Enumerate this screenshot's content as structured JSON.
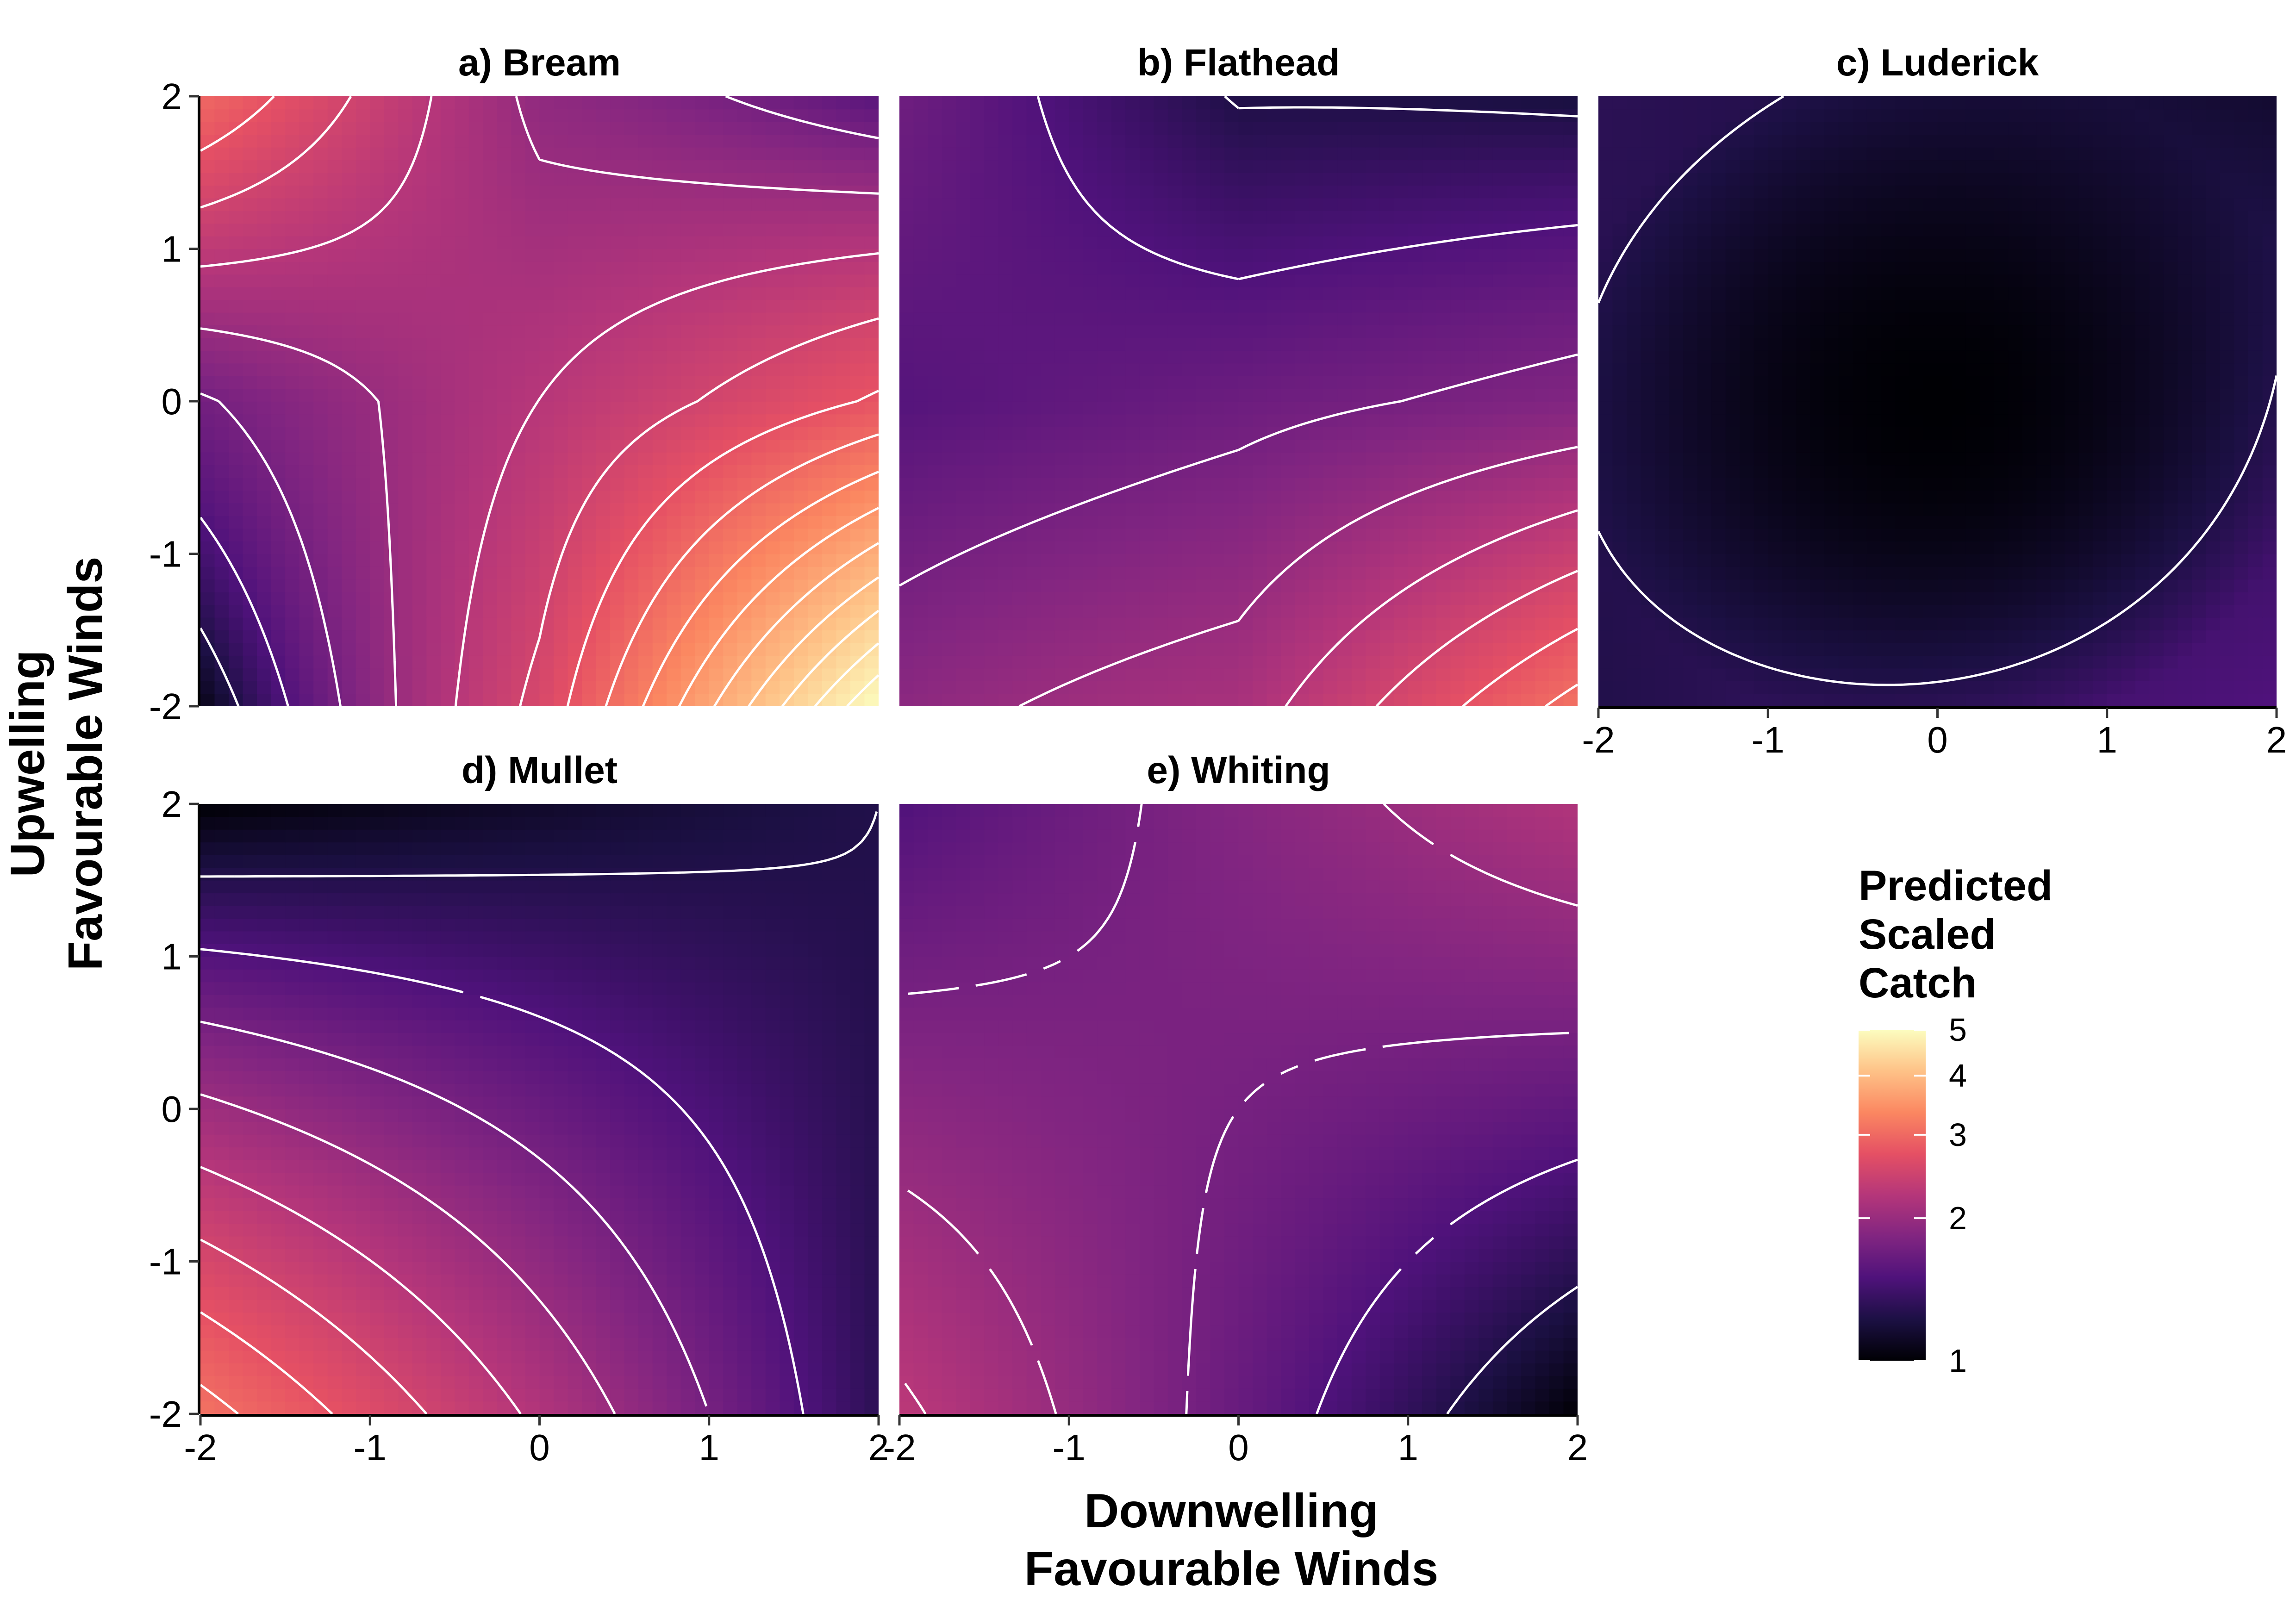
{
  "chart_data": {
    "type": "heatmap",
    "xlabel_lines": [
      "Downwelling",
      "Favourable Winds"
    ],
    "ylabel_lines": [
      "Upwelling",
      "Favourable Winds"
    ],
    "xlim": [
      -2,
      2
    ],
    "ylim": [
      -2,
      2
    ],
    "x_ticks": [
      "-2",
      "-1",
      "0",
      "1",
      "2"
    ],
    "y_ticks": [
      "-2",
      "-1",
      "0",
      "1",
      "2"
    ],
    "contour_color": "#ffffff",
    "grid": false,
    "colorscale": {
      "name": "magma",
      "log_scale": true,
      "range": [
        1,
        5
      ],
      "colors": [
        "#000004",
        "#1c1044",
        "#4f127b",
        "#812581",
        "#b5367a",
        "#e55064",
        "#fb8761",
        "#fec287",
        "#fcfdbf"
      ]
    },
    "legend": {
      "title_lines": [
        "Predicted",
        "Scaled",
        "Catch"
      ],
      "ticks": [
        "1",
        "2",
        "3",
        "4",
        "5"
      ],
      "placement": "right"
    },
    "panels": [
      {
        "title": "a) Bream",
        "surface": "saddle",
        "description_values": {
          "min": 1.0,
          "max": 5.0
        },
        "corner_values": {
          "x-2_y-2": 1.05,
          "x2_y-2": 5.0,
          "x-2_y2": 3.0,
          "x2_y2": 1.55
        }
      },
      {
        "title": "b) Flathead",
        "surface": "saddle",
        "corner_values": {
          "x-2_y-2": 1.9,
          "x2_y-2": 3.1,
          "x-2_y2": 1.7,
          "x2_y2": 1.2
        }
      },
      {
        "title": "c) Luderick",
        "surface": "bowl",
        "corner_values": {
          "x-2_y-2": 1.25,
          "x2_y-2": 1.5,
          "x-2_y2": 1.3,
          "x2_y2": 1.15
        },
        "min_value": 1.0
      },
      {
        "title": "d) Mullet",
        "surface": "gradient",
        "corner_values": {
          "x-2_y-2": 3.1,
          "x2_y-2": 1.3,
          "x-2_y2": 1.0,
          "x2_y2": 1.25
        },
        "min_value": 1.0
      },
      {
        "title": "e) Whiting",
        "surface": "gradient",
        "corner_values": {
          "x-2_y-2": 2.3,
          "x2_y-2": 1.0,
          "x-2_y2": 1.5,
          "x2_y2": 2.2
        },
        "min_value": 1.0
      }
    ]
  }
}
